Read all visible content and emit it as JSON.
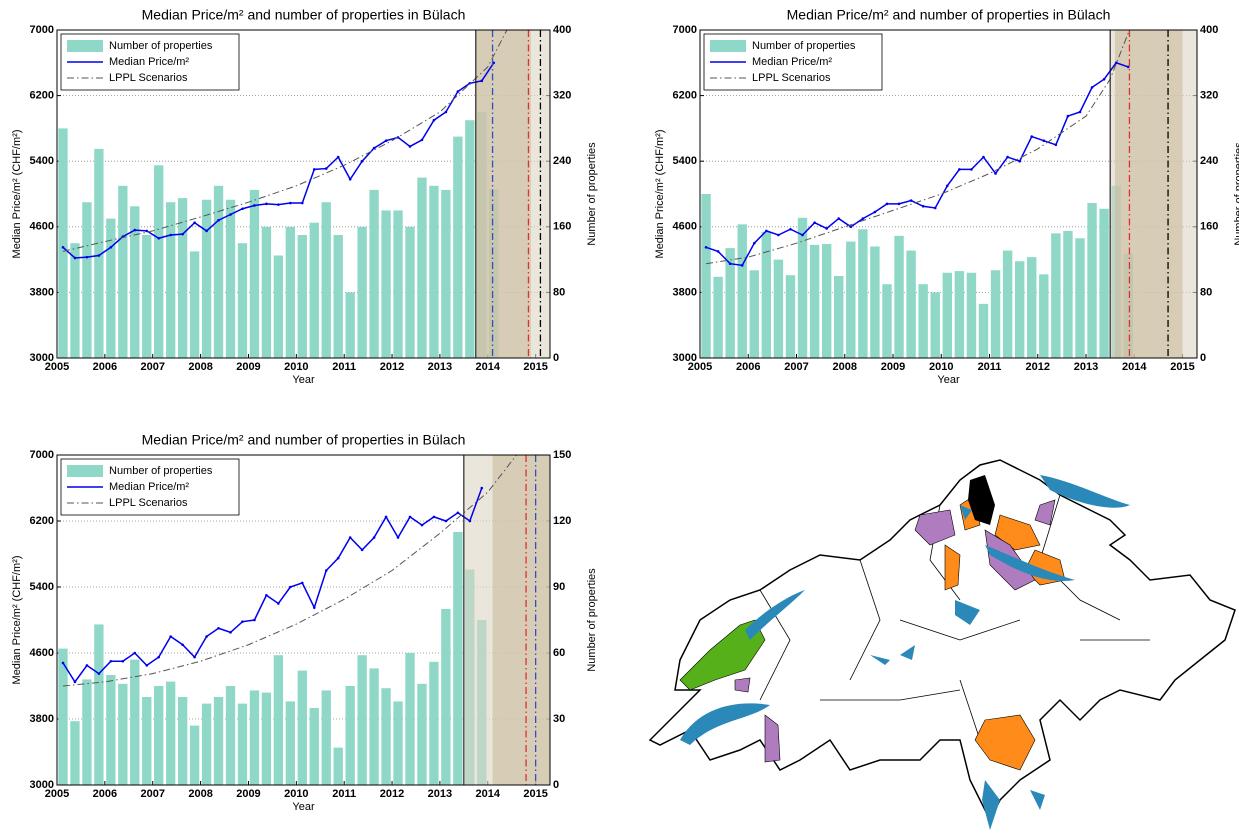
{
  "chart_data": [
    {
      "type": "bar_line",
      "title": "Median Price/m² and number of properties in Bülach",
      "xlabel": "Year",
      "ylabel": "Median Price/m² (CHF/m²)",
      "y2label": "Number of properties",
      "xlim": [
        2005,
        2015.3
      ],
      "xticks": [
        2005,
        2006,
        2007,
        2008,
        2009,
        2010,
        2011,
        2012,
        2013,
        2014,
        2015
      ],
      "ylim": [
        3000,
        7000
      ],
      "yticks": [
        3000,
        3800,
        4600,
        5400,
        6200,
        7000
      ],
      "y2lim": [
        0,
        400
      ],
      "y2ticks": [
        0,
        80,
        160,
        240,
        320,
        400
      ],
      "grid": true,
      "x": [
        2005.125,
        2005.375,
        2005.625,
        2005.875,
        2006.125,
        2006.375,
        2006.625,
        2006.875,
        2007.125,
        2007.375,
        2007.625,
        2007.875,
        2008.125,
        2008.375,
        2008.625,
        2008.875,
        2009.125,
        2009.375,
        2009.625,
        2009.875,
        2010.125,
        2010.375,
        2010.625,
        2010.875,
        2011.125,
        2011.375,
        2011.625,
        2011.875,
        2012.125,
        2012.375,
        2012.625,
        2012.875,
        2013.125,
        2013.375,
        2013.625,
        2013.875,
        2014.125
      ],
      "series": [
        {
          "name": "Number of properties",
          "type": "bar",
          "axis": "y2",
          "color": "#8fd8c8",
          "values": [
            280,
            140,
            190,
            255,
            170,
            210,
            185,
            150,
            235,
            190,
            195,
            130,
            193,
            210,
            193,
            140,
            205,
            160,
            125,
            160,
            150,
            165,
            190,
            150,
            80,
            160,
            205,
            180,
            180,
            160,
            220,
            210,
            205,
            270,
            290,
            300,
            206
          ]
        },
        {
          "name": "Median Price/m²",
          "type": "line",
          "color": "#0000ee",
          "values": [
            4350,
            4220,
            4230,
            4250,
            4350,
            4480,
            4560,
            4550,
            4460,
            4500,
            4510,
            4650,
            4550,
            4680,
            4750,
            4820,
            4860,
            4880,
            4870,
            4890,
            4890,
            5300,
            5310,
            5450,
            5180,
            5400,
            5560,
            5650,
            5690,
            5580,
            5660,
            5900,
            6000,
            6250,
            6350,
            6380,
            6600
          ]
        },
        {
          "name": "LPPL Scenarios",
          "type": "line",
          "color": "#555555",
          "dash": "dashdot",
          "x": [
            2005.125,
            2006,
            2007,
            2008,
            2009,
            2010,
            2011,
            2012,
            2013,
            2014,
            2014.4
          ],
          "values": [
            4300,
            4420,
            4550,
            4720,
            4900,
            5100,
            5350,
            5650,
            6000,
            6550,
            7000
          ]
        }
      ],
      "shaded": [
        {
          "x": [
            2013.75,
            2015.3
          ],
          "color": "#ddd6c4"
        },
        {
          "x": [
            2013.75,
            2014.9
          ],
          "color": "#c9bb9c"
        }
      ],
      "vlines": [
        {
          "x": 2013.75,
          "color": "#000000",
          "dash": "solid"
        },
        {
          "x": 2014.1,
          "color": "#3050c0",
          "dash": "dashdot"
        },
        {
          "x": 2014.85,
          "color": "#e03030",
          "dash": "dashdot"
        },
        {
          "x": 2015.1,
          "color": "#000000",
          "dash": "dashdot"
        }
      ]
    },
    {
      "type": "bar_line",
      "title": "Median Price/m² and number of properties in Bülach",
      "xlabel": "Year",
      "ylabel": "Median Price/m² (CHF/m²)",
      "y2label": "Number of properties",
      "xlim": [
        2005,
        2015.3
      ],
      "xticks": [
        2005,
        2006,
        2007,
        2008,
        2009,
        2010,
        2011,
        2012,
        2013,
        2014,
        2015
      ],
      "ylim": [
        3000,
        7000
      ],
      "yticks": [
        3000,
        3800,
        4600,
        5400,
        6200,
        7000
      ],
      "y2lim": [
        0,
        400
      ],
      "y2ticks": [
        0,
        80,
        160,
        240,
        320,
        400
      ],
      "grid": true,
      "x": [
        2005.125,
        2005.375,
        2005.625,
        2005.875,
        2006.125,
        2006.375,
        2006.625,
        2006.875,
        2007.125,
        2007.375,
        2007.625,
        2007.875,
        2008.125,
        2008.375,
        2008.625,
        2008.875,
        2009.125,
        2009.375,
        2009.625,
        2009.875,
        2010.125,
        2010.375,
        2010.625,
        2010.875,
        2011.125,
        2011.375,
        2011.625,
        2011.875,
        2012.125,
        2012.375,
        2012.625,
        2012.875,
        2013.125,
        2013.375,
        2013.625,
        2013.875
      ],
      "series": [
        {
          "name": "Number of properties",
          "type": "bar",
          "axis": "y2",
          "color": "#8fd8c8",
          "values": [
            200,
            99,
            134,
            163,
            107,
            154,
            120,
            101,
            171,
            138,
            139,
            100,
            142,
            157,
            136,
            90,
            149,
            131,
            90,
            80,
            104,
            106,
            104,
            66,
            107,
            131,
            118,
            123,
            102,
            152,
            155,
            146,
            189,
            182,
            210,
            127
          ]
        },
        {
          "name": "Median Price/m²",
          "type": "line",
          "color": "#0000ee",
          "values": [
            4350,
            4300,
            4150,
            4130,
            4400,
            4550,
            4500,
            4570,
            4500,
            4650,
            4580,
            4700,
            4600,
            4700,
            4780,
            4880,
            4880,
            4920,
            4850,
            4830,
            5100,
            5300,
            5300,
            5450,
            5250,
            5450,
            5400,
            5700,
            5650,
            5600,
            5950,
            6000,
            6300,
            6400,
            6600,
            6550
          ]
        },
        {
          "name": "LPPL Scenarios",
          "type": "line",
          "color": "#555555",
          "dash": "dashdot",
          "x": [
            2005.125,
            2006,
            2007,
            2008,
            2009,
            2010,
            2011,
            2012,
            2013,
            2013.5,
            2013.9
          ],
          "values": [
            4150,
            4230,
            4400,
            4600,
            4800,
            5000,
            5250,
            5550,
            5950,
            6400,
            7000
          ]
        }
      ],
      "shaded": [
        {
          "x": [
            2013.5,
            2015.3
          ],
          "color": "#ddd6c4"
        },
        {
          "x": [
            2013.6,
            2015.0
          ],
          "color": "#c9bb9c"
        }
      ],
      "vlines": [
        {
          "x": 2013.5,
          "color": "#000000",
          "dash": "solid"
        },
        {
          "x": 2013.9,
          "color": "#e03030",
          "dash": "dashdot"
        },
        {
          "x": 2014.7,
          "color": "#000000",
          "dash": "dashdot"
        }
      ]
    },
    {
      "type": "bar_line",
      "title": "Median Price/m² and number of properties in Bülach",
      "xlabel": "Year",
      "ylabel": "Median Price/m² (CHF/m²)",
      "y2label": "Number of properties",
      "xlim": [
        2005,
        2015.3
      ],
      "xticks": [
        2005,
        2006,
        2007,
        2008,
        2009,
        2010,
        2011,
        2012,
        2013,
        2014,
        2015
      ],
      "ylim": [
        3000,
        7000
      ],
      "yticks": [
        3000,
        3800,
        4600,
        5400,
        6200,
        7000
      ],
      "y2lim": [
        0,
        150
      ],
      "y2ticks": [
        0,
        30,
        60,
        90,
        120,
        150
      ],
      "grid": true,
      "x": [
        2005.125,
        2005.375,
        2005.625,
        2005.875,
        2006.125,
        2006.375,
        2006.625,
        2006.875,
        2007.125,
        2007.375,
        2007.625,
        2007.875,
        2008.125,
        2008.375,
        2008.625,
        2008.875,
        2009.125,
        2009.375,
        2009.625,
        2009.875,
        2010.125,
        2010.375,
        2010.625,
        2010.875,
        2011.125,
        2011.375,
        2011.625,
        2011.875,
        2012.125,
        2012.375,
        2012.625,
        2012.875,
        2013.125,
        2013.375,
        2013.625,
        2013.875
      ],
      "series": [
        {
          "name": "Number of properties",
          "type": "bar",
          "axis": "y2",
          "color": "#8fd8c8",
          "values": [
            62,
            29,
            48,
            73,
            50,
            46,
            57,
            40,
            45,
            47,
            40,
            27,
            37,
            40,
            45,
            37,
            43,
            42,
            59,
            38,
            52,
            35,
            43,
            17,
            45,
            59,
            53,
            44,
            38,
            60,
            46,
            56,
            80,
            115,
            98,
            75
          ]
        },
        {
          "name": "Median Price/m²",
          "type": "line",
          "color": "#0000ee",
          "values": [
            4480,
            4250,
            4450,
            4350,
            4500,
            4500,
            4600,
            4450,
            4550,
            4800,
            4700,
            4550,
            4800,
            4900,
            4850,
            4980,
            5000,
            5300,
            5200,
            5400,
            5450,
            5150,
            5600,
            5750,
            6000,
            5850,
            6000,
            6250,
            6000,
            6250,
            6150,
            6250,
            6200,
            6300,
            6200,
            6600
          ]
        },
        {
          "name": "LPPL Scenarios",
          "type": "line",
          "color": "#555555",
          "dash": "dashdot",
          "x": [
            2005.125,
            2006,
            2007,
            2008,
            2009,
            2010,
            2011,
            2012,
            2013,
            2014,
            2014.6
          ],
          "values": [
            4200,
            4250,
            4350,
            4500,
            4700,
            4950,
            5250,
            5600,
            6050,
            6550,
            7000
          ]
        }
      ],
      "shaded": [
        {
          "x": [
            2013.5,
            2015.3
          ],
          "color": "#ddd6c4"
        },
        {
          "x": [
            2014.1,
            2015.3
          ],
          "color": "#c9bb9c"
        }
      ],
      "vlines": [
        {
          "x": 2013.5,
          "color": "#000000",
          "dash": "solid"
        },
        {
          "x": 2014.8,
          "color": "#e03030",
          "dash": "dashdot"
        },
        {
          "x": 2015.0,
          "color": "#3050c0",
          "dash": "dashdot"
        }
      ]
    }
  ]
}
